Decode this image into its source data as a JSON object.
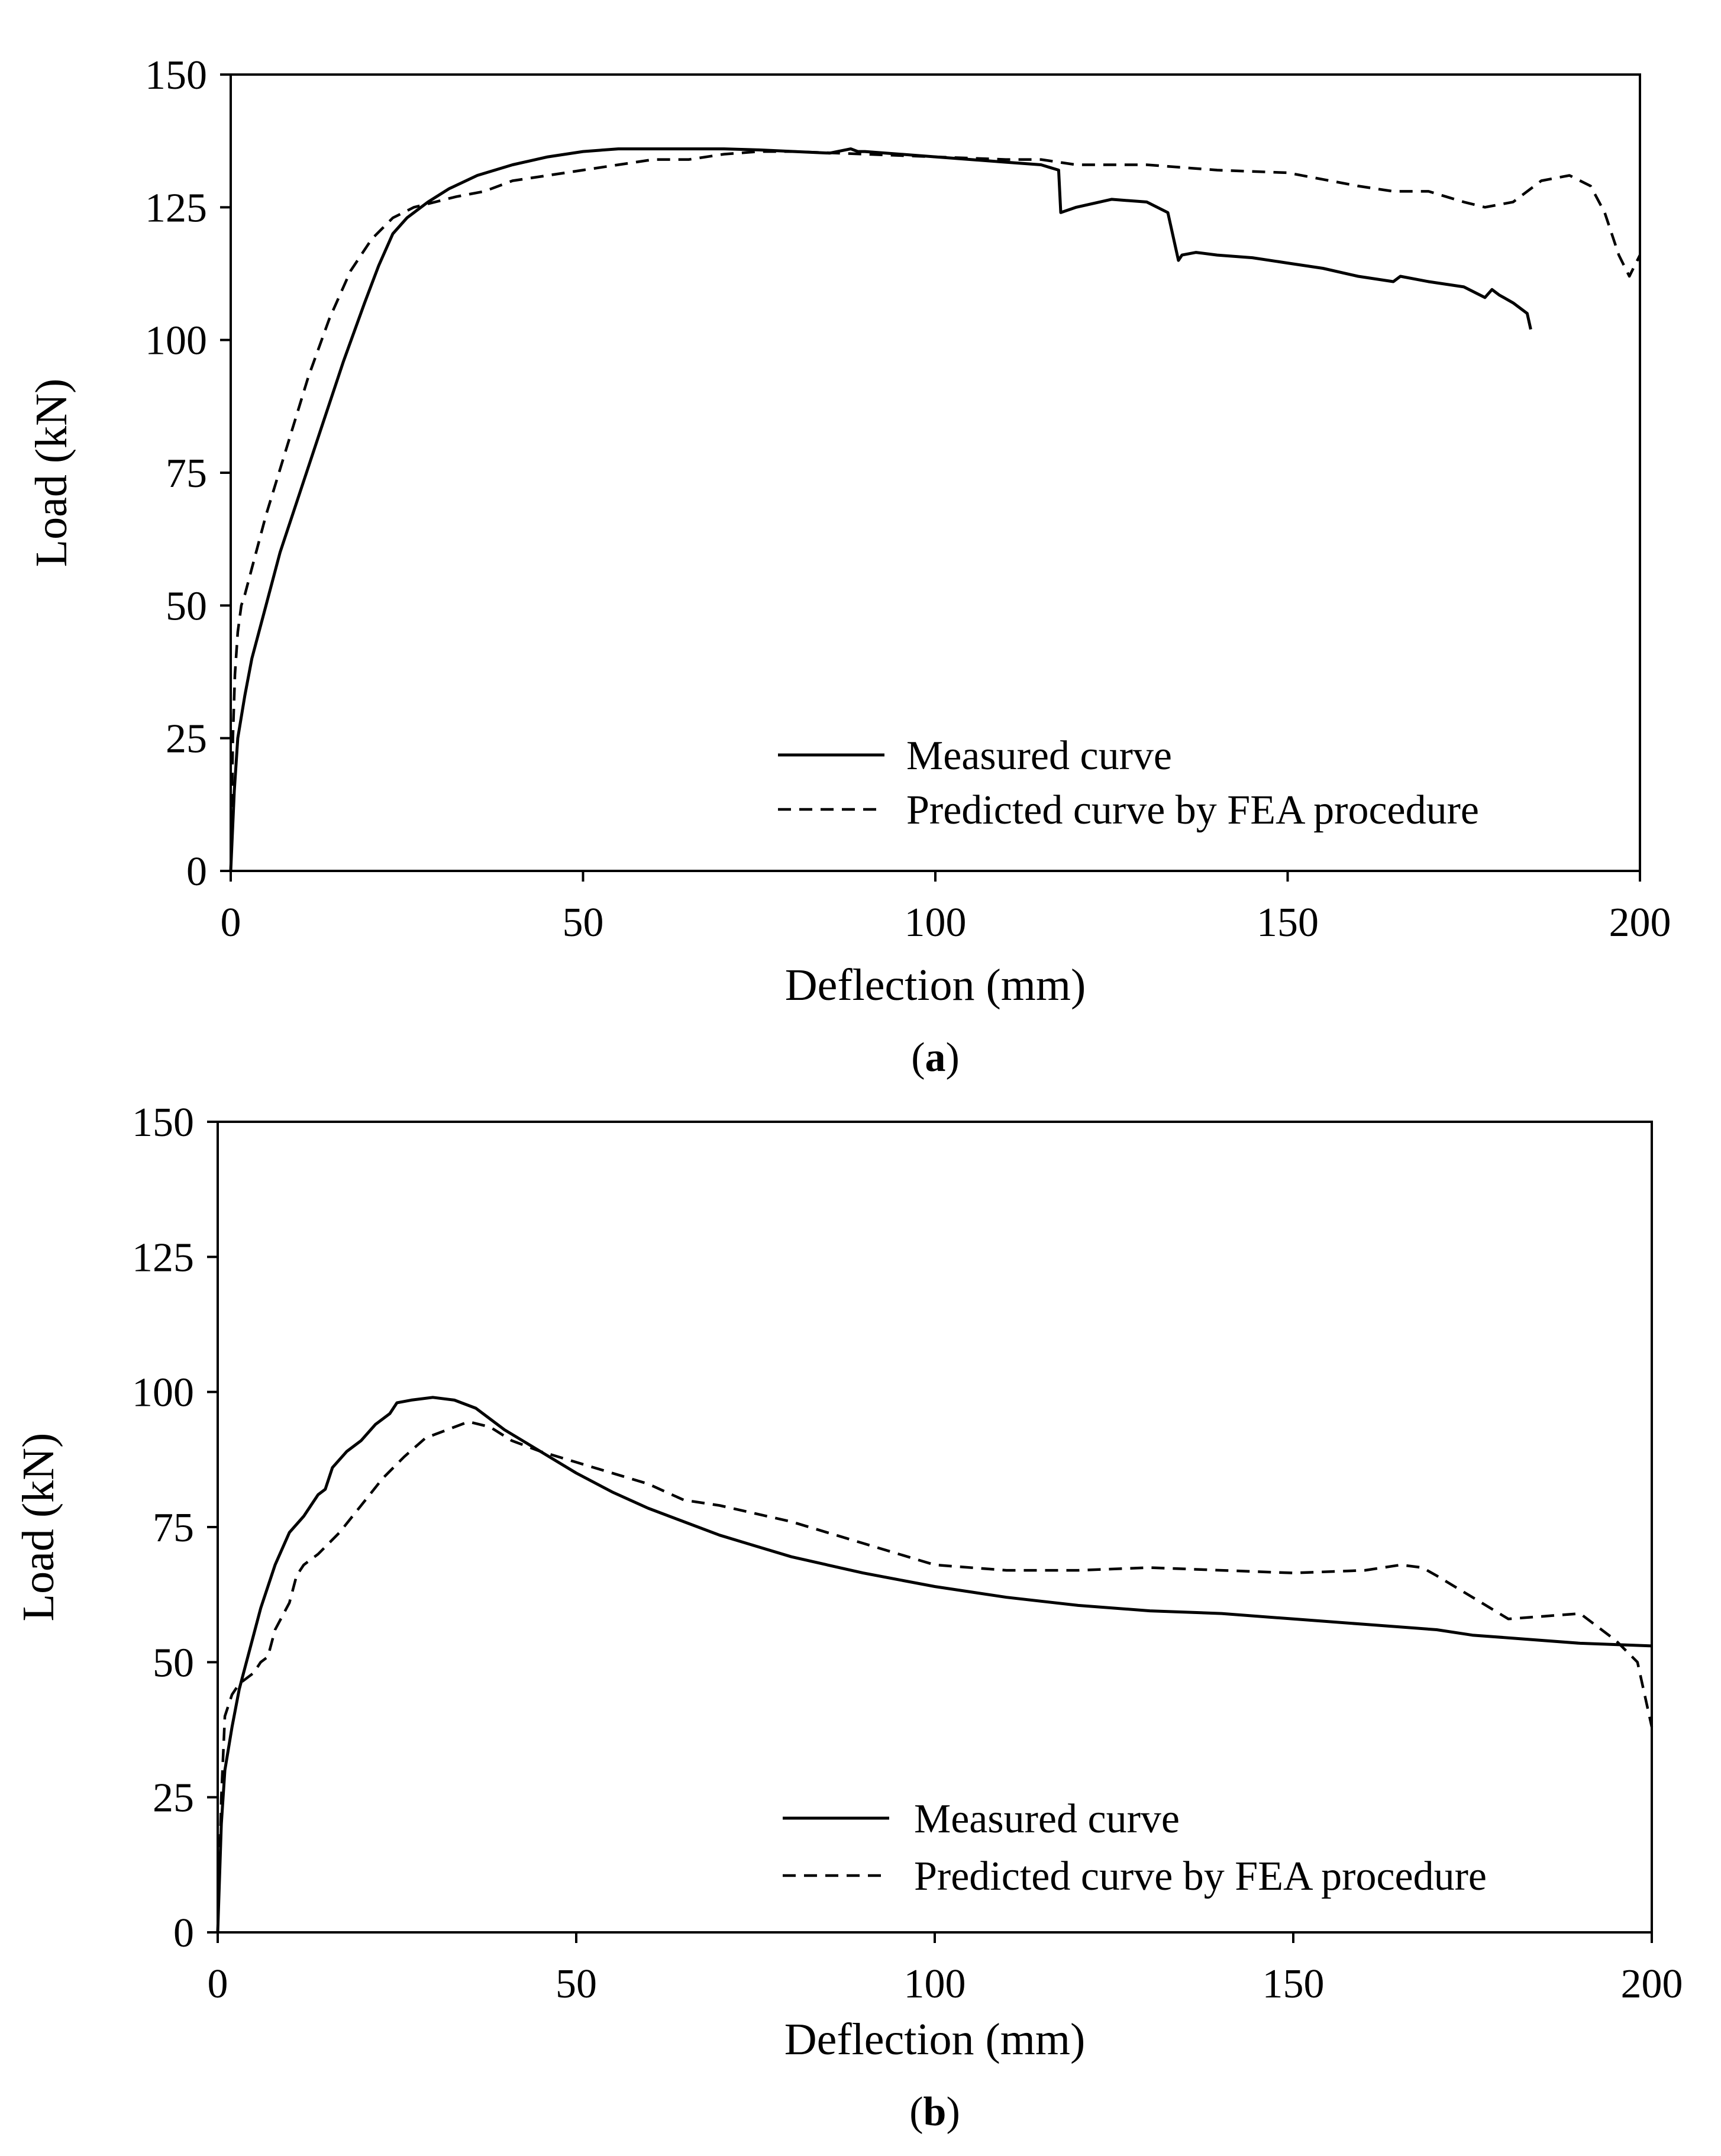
{
  "chart_data": [
    {
      "type": "line",
      "panel_label": "(a)",
      "panel_letter": "a",
      "xlabel": "Deflection (mm)",
      "ylabel": "Load (kN)",
      "xlim": [
        0,
        200
      ],
      "ylim": [
        0,
        150
      ],
      "xticks": [
        0,
        50,
        100,
        150,
        200
      ],
      "yticks": [
        0,
        25,
        50,
        75,
        100,
        125,
        150
      ],
      "grid": false,
      "legend_position": "bottom-right",
      "series": [
        {
          "name": "Measured curve",
          "style": "solid",
          "x": [
            0,
            0.5,
            1,
            2,
            3,
            5,
            7,
            10,
            13,
            16,
            19,
            21,
            23,
            25,
            28,
            31,
            35,
            40,
            45,
            50,
            55,
            60,
            65,
            70,
            75,
            80,
            85,
            88,
            89,
            90,
            95,
            100,
            105,
            110,
            115,
            117.5,
            117.8,
            120,
            125,
            130,
            133,
            134,
            134.5,
            135,
            137,
            140,
            145,
            150,
            155,
            160,
            165,
            166,
            170,
            175,
            178,
            179,
            180,
            182,
            184,
            184.5
          ],
          "y": [
            0,
            15,
            25,
            33,
            40,
            50,
            60,
            72,
            84,
            96,
            107,
            114,
            120,
            123,
            126,
            128.5,
            131,
            133,
            134.5,
            135.5,
            136,
            136,
            136,
            136,
            135.8,
            135.5,
            135.2,
            136,
            135.5,
            135.5,
            135,
            134.5,
            134,
            133.5,
            133,
            132,
            124,
            125,
            126.5,
            126,
            124,
            118,
            115,
            116,
            116.5,
            116,
            115.5,
            114.5,
            113.5,
            112,
            111,
            112,
            111,
            110,
            108,
            109.5,
            108.5,
            107,
            105,
            102
          ]
        },
        {
          "name": "Predicted curve by FEA procedure",
          "style": "dashed",
          "x": [
            0,
            0.3,
            0.6,
            1,
            1.5,
            2,
            3,
            5,
            8,
            11,
            14,
            17,
            20,
            23,
            26,
            29,
            32,
            36,
            40,
            45,
            50,
            55,
            60,
            65,
            70,
            75,
            80,
            90,
            100,
            110,
            115,
            120,
            130,
            140,
            150,
            160,
            165,
            170,
            175,
            178,
            182,
            186,
            190,
            193,
            195,
            197,
            198.5,
            200
          ],
          "y": [
            0,
            25,
            37,
            45,
            50,
            52,
            57,
            67,
            80,
            93,
            104,
            113,
            119,
            123,
            125,
            126,
            127,
            128,
            130,
            131,
            132,
            133,
            134,
            134,
            135,
            135.5,
            135.5,
            135,
            134.5,
            134,
            134,
            133,
            133,
            132,
            131.5,
            129,
            128,
            128,
            126,
            125,
            126,
            130,
            131,
            129,
            124,
            116,
            112,
            116
          ]
        }
      ]
    },
    {
      "type": "line",
      "panel_label": "(b)",
      "panel_letter": "b",
      "xlabel": "Deflection (mm)",
      "ylabel": "Load (kN)",
      "xlim": [
        0,
        200
      ],
      "ylim": [
        0,
        150
      ],
      "xticks": [
        0,
        50,
        100,
        150,
        200
      ],
      "yticks": [
        0,
        25,
        50,
        75,
        100,
        125,
        150
      ],
      "grid": false,
      "legend_position": "bottom-right",
      "series": [
        {
          "name": "Measured curve",
          "style": "solid",
          "x": [
            0,
            0.5,
            1,
            2,
            3,
            4,
            5,
            6,
            8,
            10,
            12,
            14,
            15,
            16,
            18,
            20,
            22,
            24,
            25,
            27,
            30,
            33,
            36,
            40,
            45,
            50,
            55,
            60,
            65,
            70,
            75,
            80,
            90,
            100,
            110,
            120,
            130,
            140,
            150,
            160,
            170,
            175,
            180,
            190,
            200
          ],
          "y": [
            0,
            20,
            30,
            38,
            45,
            50,
            55,
            60,
            68,
            74,
            77,
            81,
            82,
            86,
            89,
            91,
            94,
            96,
            98,
            98.5,
            99,
            98.5,
            97,
            93,
            89,
            85,
            81.5,
            78.5,
            76,
            73.5,
            71.5,
            69.5,
            66.5,
            64,
            62,
            60.5,
            59.5,
            59,
            58,
            57,
            56,
            55,
            54.5,
            53.5,
            53
          ]
        },
        {
          "name": "Predicted curve by FEA procedure",
          "style": "dashed",
          "x": [
            0,
            0.5,
            1,
            2,
            3,
            5,
            6,
            7,
            8,
            10,
            11,
            12,
            14,
            17,
            20,
            23,
            26,
            29,
            32,
            35,
            38,
            41,
            45,
            50,
            55,
            60,
            65,
            70,
            75,
            80,
            90,
            100,
            110,
            120,
            130,
            140,
            150,
            160,
            165,
            168,
            170,
            175,
            180,
            185,
            190,
            195,
            198,
            200
          ],
          "y": [
            0,
            25,
            40,
            44,
            46,
            48,
            50,
            51,
            56,
            61,
            66,
            68,
            70,
            74,
            79,
            84,
            88,
            91.5,
            93,
            94.5,
            93.5,
            91,
            89,
            87,
            85,
            83,
            80,
            79,
            77.5,
            76,
            72,
            68,
            67,
            67,
            67.5,
            67,
            66.5,
            67,
            68,
            67.5,
            66,
            62,
            58,
            58.5,
            59,
            54,
            50,
            38
          ]
        }
      ]
    }
  ]
}
